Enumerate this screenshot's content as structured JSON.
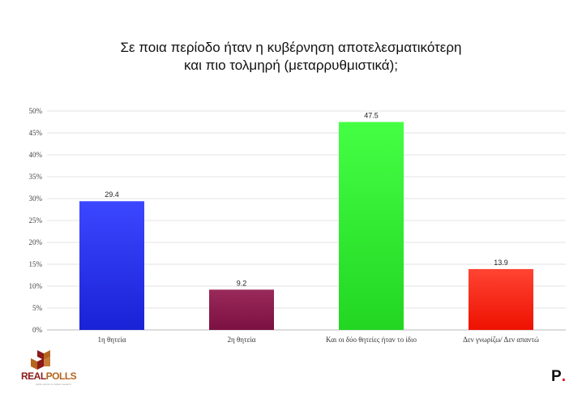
{
  "title_lines": [
    "Σε ποια περίοδο ήταν η κυβέρνηση αποτελεσματικότερη",
    "και πιο τολμηρή (μεταρρυθμιστικά);"
  ],
  "chart_data": {
    "type": "bar",
    "categories": [
      "1η θητεία",
      "2η θητεία",
      "Και οι δύο θητείες ήταν το ίδιο",
      "Δεν γνωρίζω/ Δεν απαντώ"
    ],
    "values": [
      29.4,
      9.2,
      47.5,
      13.9
    ],
    "data_labels": [
      "29.4",
      "9.2",
      "47.5",
      "13.9"
    ],
    "bar_colors": [
      [
        "#3b47ff",
        "#1a22d6"
      ],
      [
        "#9a2a5a",
        "#7c1042"
      ],
      [
        "#44ff44",
        "#22d622"
      ],
      [
        "#ff4433",
        "#ee1100"
      ]
    ],
    "y_ticks": [
      "0%",
      "5%",
      "10%",
      "15%",
      "20%",
      "25%",
      "30%",
      "35%",
      "40%",
      "45%",
      "50%"
    ],
    "ylim": [
      0,
      50
    ],
    "grid": true,
    "title": "Σε ποια περίοδο ήταν η κυβέρνηση αποτελεσματικότερη και πιο τολμηρή (μεταρρυθμιστικά);"
  },
  "logo": {
    "real": "REAL",
    "polls": "POLLS",
    "tagline": "public opinion & market research"
  },
  "brand_mark": {
    "letter": "P",
    "dot": "."
  }
}
